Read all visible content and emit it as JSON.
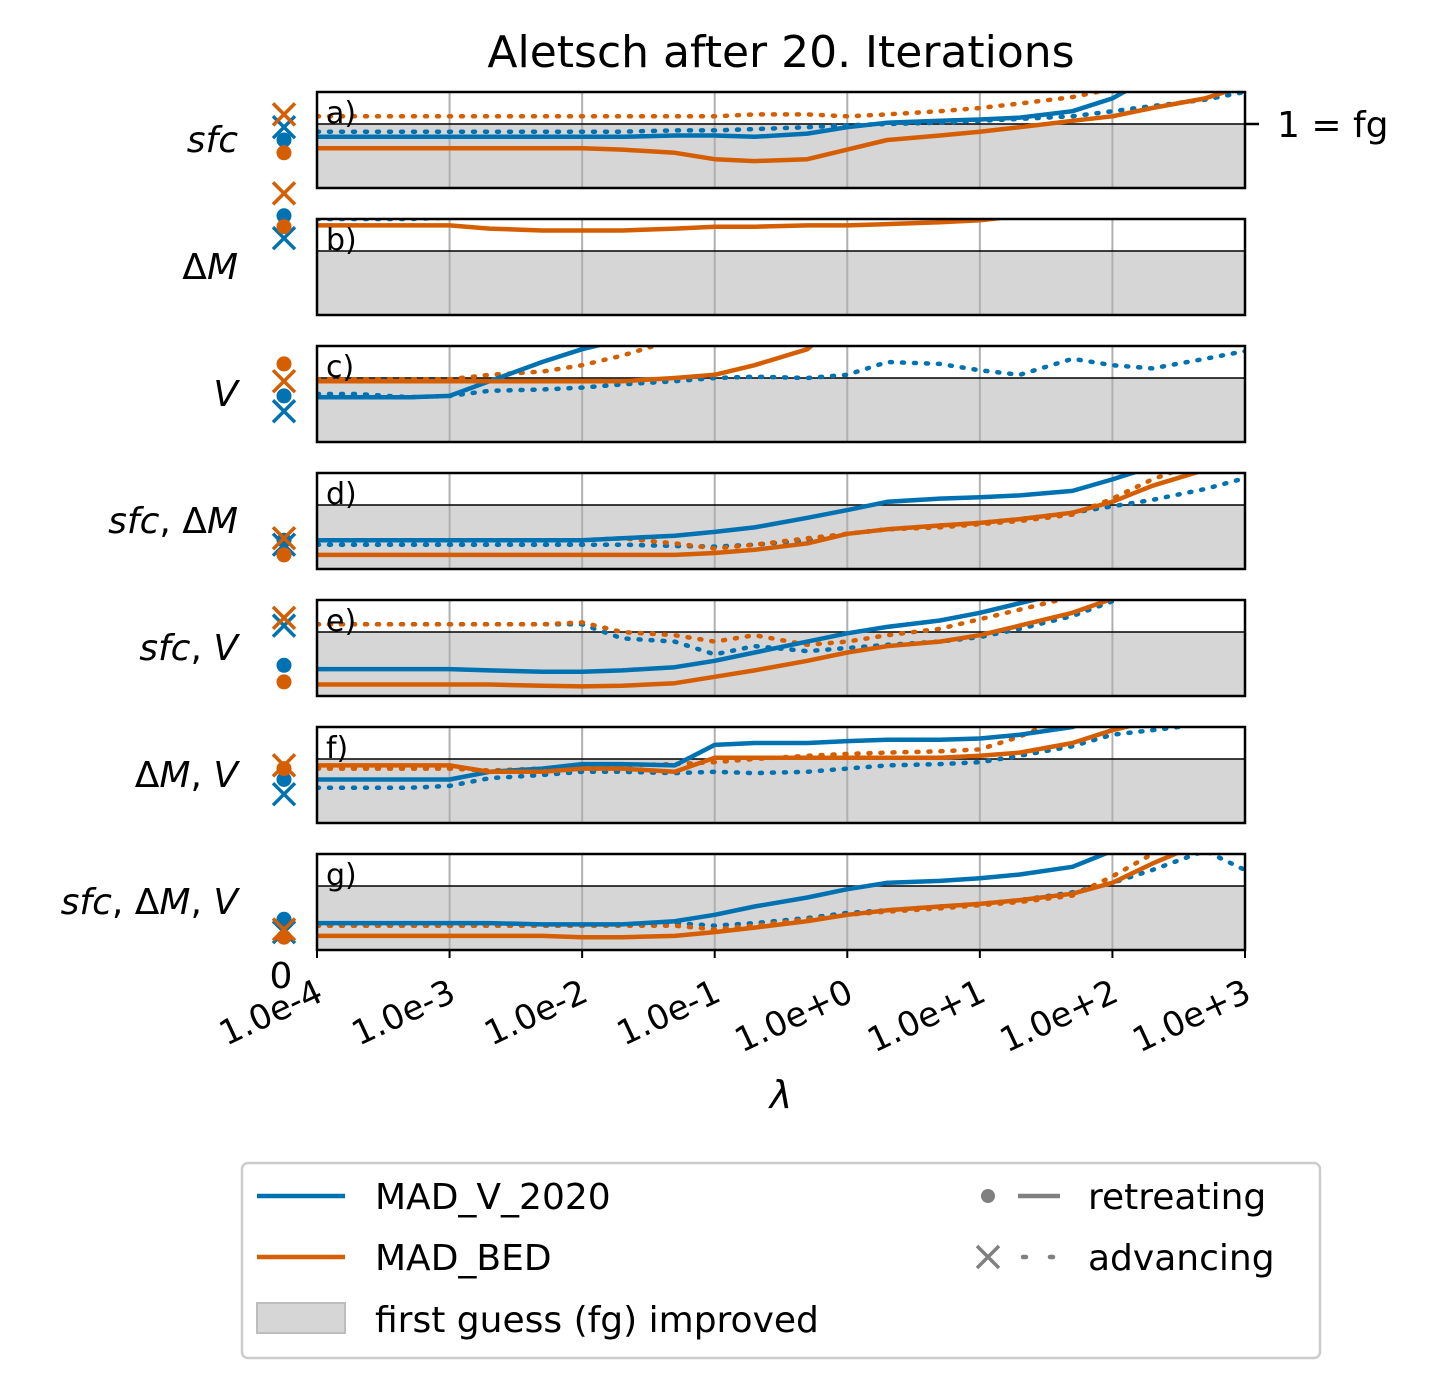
{
  "chart_data": {
    "type": "line",
    "title": "Aletsch after 20. Iterations",
    "xlabel": "λ",
    "x_zero_label": "0",
    "x_ticks": [
      "1.0e-4",
      "1.0e-3",
      "1.0e-2",
      "1.0e-1",
      "1.0e+0",
      "1.0e+1",
      "1.0e+2",
      "1.0e+3"
    ],
    "x_scale": "log",
    "x": [
      0.0001,
      0.0002,
      0.0005,
      0.001,
      0.002,
      0.005,
      0.01,
      0.02,
      0.05,
      0.1,
      0.2,
      0.5,
      1,
      2,
      5,
      10,
      20,
      50,
      100,
      200,
      500,
      1000
    ],
    "reference_line_label": "1 = fg",
    "reference_value": 1,
    "ylim": [
      0,
      1.5
    ],
    "improved_region": [
      0,
      1
    ],
    "colors": {
      "MAD_V_2020": "#0072b2",
      "MAD_BED": "#d55e00",
      "shade": "#d6d6d6",
      "marker_legend": "#808080"
    },
    "panels": [
      {
        "label": "a)",
        "row_label": "sfc",
        "zero_markers": {
          "V2020_retreating": 0.75,
          "V2020_advancing": 0.95,
          "BED_retreating": 0.55,
          "BED_advancing": 1.15
        },
        "series": {
          "V2020_retreating": [
            0.8,
            0.8,
            0.8,
            0.8,
            0.8,
            0.8,
            0.8,
            0.8,
            0.82,
            0.82,
            0.8,
            0.85,
            0.95,
            1.02,
            1.05,
            1.07,
            1.1,
            1.2,
            1.4,
            1.75,
            2.1,
            2.4
          ],
          "V2020_advancing": [
            0.88,
            0.88,
            0.88,
            0.88,
            0.88,
            0.88,
            0.88,
            0.88,
            0.9,
            0.9,
            0.92,
            0.95,
            0.98,
            1.0,
            1.02,
            1.05,
            1.08,
            1.12,
            1.2,
            1.28,
            1.38,
            1.5
          ],
          "BED_retreating": [
            0.62,
            0.62,
            0.62,
            0.62,
            0.62,
            0.62,
            0.62,
            0.6,
            0.55,
            0.45,
            0.42,
            0.45,
            0.6,
            0.75,
            0.82,
            0.88,
            0.95,
            1.05,
            1.12,
            1.25,
            1.4,
            1.6
          ],
          "BED_advancing": [
            1.12,
            1.12,
            1.12,
            1.12,
            1.12,
            1.12,
            1.12,
            1.12,
            1.12,
            1.12,
            1.15,
            1.15,
            1.12,
            1.15,
            1.2,
            1.25,
            1.32,
            1.42,
            1.55,
            1.72,
            1.95,
            2.2
          ]
        }
      },
      {
        "label": "b)",
        "row_label": "ΔM",
        "zero_markers": {
          "V2020_retreating": 1.55,
          "V2020_advancing": 1.2,
          "BED_retreating": 1.38,
          "BED_advancing": 1.9
        },
        "series": {
          "V2020_retreating": [
            1.65,
            1.65,
            1.65,
            1.65,
            1.65,
            1.67,
            1.68,
            1.68,
            1.7,
            2.25,
            2.3,
            2.28,
            2.2,
            2.15,
            2.12,
            2.18,
            2.25,
            2.35,
            2.4,
            2.35,
            2.4,
            2.45
          ],
          "V2020_advancing": [
            1.5,
            1.5,
            1.5,
            1.52,
            1.52,
            1.55,
            1.55,
            1.58,
            1.65,
            1.82,
            1.95,
            2.1,
            2.25,
            2.35,
            2.4,
            2.42,
            2.45,
            2.45,
            2.4,
            2.35,
            2.38,
            2.45
          ],
          "BED_retreating": [
            1.4,
            1.4,
            1.4,
            1.4,
            1.35,
            1.32,
            1.32,
            1.32,
            1.35,
            1.38,
            1.38,
            1.4,
            1.4,
            1.42,
            1.45,
            1.48,
            1.55,
            1.65,
            1.75,
            1.85,
            1.95,
            2.05
          ],
          "BED_advancing": [
            1.9,
            1.9,
            1.9,
            1.92,
            2.05,
            2.1,
            2.15,
            2.2,
            2.25,
            2.3,
            2.35,
            2.4,
            2.45,
            2.5,
            2.55,
            2.6,
            2.65,
            2.7,
            2.75,
            2.8,
            2.85,
            2.9
          ]
        }
      },
      {
        "label": "c)",
        "row_label": "V",
        "zero_markers": {
          "V2020_retreating": 0.72,
          "V2020_advancing": 0.48,
          "BED_retreating": 1.22,
          "BED_advancing": 0.95
        },
        "series": {
          "V2020_retreating": [
            0.7,
            0.7,
            0.7,
            0.72,
            0.95,
            1.25,
            1.45,
            1.6,
            1.7,
            1.85,
            2.1,
            2.5,
            3.0,
            3.5,
            4.0,
            4.5,
            5.0,
            5.5,
            6.0,
            6.5,
            7.0,
            7.5
          ],
          "V2020_advancing": [
            0.75,
            0.75,
            0.7,
            0.72,
            0.8,
            0.82,
            0.85,
            0.9,
            0.95,
            1.0,
            1.02,
            1.0,
            1.05,
            1.25,
            1.22,
            1.12,
            1.05,
            1.3,
            1.2,
            1.15,
            1.3,
            1.42
          ],
          "BED_retreating": [
            0.95,
            0.95,
            0.95,
            0.95,
            0.95,
            0.95,
            0.95,
            0.95,
            1.0,
            1.05,
            1.2,
            1.45,
            2.0,
            2.5,
            3.0,
            3.5,
            4.0,
            4.5,
            5.0,
            5.5,
            6.0,
            6.5
          ],
          "BED_advancing": [
            0.98,
            0.98,
            0.98,
            0.98,
            1.05,
            1.1,
            1.2,
            1.35,
            1.6,
            2.0,
            2.5,
            3.0,
            3.5,
            4.0,
            4.5,
            5.0,
            5.5,
            6.0,
            6.5,
            7.0,
            7.5,
            8.0
          ]
        }
      },
      {
        "label": "d)",
        "row_label": "sfc, ΔM",
        "zero_markers": {
          "V2020_retreating": 0.45,
          "V2020_advancing": 0.38,
          "BED_retreating": 0.22,
          "BED_advancing": 0.48
        },
        "series": {
          "V2020_retreating": [
            0.45,
            0.45,
            0.45,
            0.45,
            0.45,
            0.45,
            0.45,
            0.48,
            0.52,
            0.58,
            0.65,
            0.8,
            0.92,
            1.05,
            1.1,
            1.12,
            1.15,
            1.22,
            1.4,
            1.6,
            1.85,
            2.1
          ],
          "V2020_advancing": [
            0.38,
            0.38,
            0.38,
            0.38,
            0.38,
            0.38,
            0.38,
            0.38,
            0.36,
            0.35,
            0.38,
            0.45,
            0.55,
            0.62,
            0.68,
            0.72,
            0.78,
            0.88,
            0.98,
            1.08,
            1.25,
            1.42
          ],
          "BED_retreating": [
            0.22,
            0.22,
            0.22,
            0.22,
            0.22,
            0.22,
            0.22,
            0.22,
            0.22,
            0.25,
            0.3,
            0.4,
            0.55,
            0.62,
            0.68,
            0.72,
            0.78,
            0.88,
            1.05,
            1.3,
            1.55,
            1.8
          ],
          "BED_advancing": [
            0.45,
            0.45,
            0.45,
            0.45,
            0.45,
            0.45,
            0.45,
            0.48,
            0.4,
            0.32,
            0.38,
            0.48,
            0.55,
            0.62,
            0.65,
            0.7,
            0.75,
            0.85,
            1.1,
            1.4,
            1.7,
            2.0
          ]
        }
      },
      {
        "label": "e)",
        "row_label": "sfc, V",
        "zero_markers": {
          "V2020_retreating": 0.48,
          "V2020_advancing": 1.1,
          "BED_retreating": 0.22,
          "BED_advancing": 1.22
        },
        "series": {
          "V2020_retreating": [
            0.42,
            0.42,
            0.42,
            0.42,
            0.4,
            0.38,
            0.38,
            0.4,
            0.45,
            0.55,
            0.68,
            0.85,
            0.98,
            1.08,
            1.18,
            1.3,
            1.45,
            1.65,
            1.85,
            2.05,
            2.25,
            2.45
          ],
          "V2020_advancing": [
            1.12,
            1.12,
            1.12,
            1.12,
            1.12,
            1.12,
            1.12,
            0.9,
            0.85,
            0.65,
            0.78,
            0.7,
            0.75,
            0.8,
            0.85,
            0.92,
            1.05,
            1.25,
            1.48,
            1.7,
            1.92,
            2.1
          ],
          "BED_retreating": [
            0.18,
            0.18,
            0.18,
            0.18,
            0.18,
            0.16,
            0.15,
            0.16,
            0.2,
            0.3,
            0.4,
            0.55,
            0.68,
            0.78,
            0.85,
            0.95,
            1.1,
            1.3,
            1.52,
            1.75,
            1.98,
            2.2
          ],
          "BED_advancing": [
            1.12,
            1.12,
            1.12,
            1.12,
            1.12,
            1.12,
            1.15,
            1.0,
            0.95,
            0.85,
            0.95,
            0.8,
            0.85,
            0.95,
            1.05,
            1.2,
            1.35,
            1.55,
            1.75,
            1.95,
            2.15,
            2.35
          ]
        }
      },
      {
        "label": "f)",
        "row_label": "ΔM, V",
        "zero_markers": {
          "V2020_retreating": 0.68,
          "V2020_advancing": 0.45,
          "BED_retreating": 0.85,
          "BED_advancing": 0.9
        },
        "series": {
          "V2020_retreating": [
            0.68,
            0.68,
            0.68,
            0.68,
            0.8,
            0.85,
            0.92,
            0.92,
            0.9,
            1.22,
            1.25,
            1.25,
            1.28,
            1.3,
            1.3,
            1.32,
            1.38,
            1.5,
            1.75,
            1.95,
            2.15,
            2.35
          ],
          "V2020_advancing": [
            0.55,
            0.55,
            0.55,
            0.58,
            0.7,
            0.75,
            0.8,
            0.8,
            0.78,
            0.8,
            0.78,
            0.8,
            0.85,
            0.9,
            0.92,
            0.95,
            1.05,
            1.2,
            1.38,
            1.45,
            1.55,
            1.65
          ],
          "BED_retreating": [
            0.9,
            0.9,
            0.9,
            0.9,
            0.8,
            0.8,
            0.85,
            0.85,
            0.8,
            1.02,
            1.02,
            1.02,
            1.02,
            1.02,
            1.02,
            1.05,
            1.1,
            1.25,
            1.45,
            1.6,
            1.78,
            1.95
          ],
          "BED_advancing": [
            0.85,
            0.85,
            0.85,
            0.85,
            0.82,
            0.85,
            0.88,
            0.9,
            0.92,
            0.95,
            1.0,
            1.05,
            1.08,
            1.1,
            1.12,
            1.15,
            1.35,
            1.7,
            2.05,
            2.4,
            2.75,
            3.1
          ]
        }
      },
      {
        "label": "g)",
        "row_label": "sfc, ΔM, V",
        "zero_markers": {
          "V2020_retreating": 0.48,
          "V2020_advancing": 0.28,
          "BED_retreating": 0.2,
          "BED_advancing": 0.32
        },
        "series": {
          "V2020_retreating": [
            0.42,
            0.42,
            0.42,
            0.42,
            0.42,
            0.4,
            0.4,
            0.4,
            0.45,
            0.55,
            0.68,
            0.82,
            0.95,
            1.05,
            1.08,
            1.12,
            1.18,
            1.3,
            1.55,
            1.85,
            2.15,
            2.45
          ],
          "V2020_advancing": [
            0.38,
            0.38,
            0.38,
            0.38,
            0.38,
            0.38,
            0.38,
            0.4,
            0.42,
            0.38,
            0.42,
            0.5,
            0.58,
            0.62,
            0.68,
            0.72,
            0.78,
            0.9,
            1.05,
            1.25,
            1.55,
            1.25
          ],
          "BED_retreating": [
            0.22,
            0.22,
            0.22,
            0.22,
            0.22,
            0.22,
            0.2,
            0.2,
            0.22,
            0.28,
            0.35,
            0.45,
            0.55,
            0.62,
            0.68,
            0.72,
            0.78,
            0.88,
            1.05,
            1.35,
            1.7,
            2.0
          ],
          "BED_advancing": [
            0.38,
            0.38,
            0.38,
            0.38,
            0.38,
            0.38,
            0.38,
            0.38,
            0.38,
            0.32,
            0.38,
            0.48,
            0.55,
            0.6,
            0.65,
            0.7,
            0.75,
            0.85,
            1.15,
            1.5,
            1.85,
            2.2
          ]
        }
      }
    ],
    "legend": {
      "entries": [
        {
          "key": "MAD_V_2020",
          "label": "MAD_V_2020"
        },
        {
          "key": "MAD_BED",
          "label": "MAD_BED"
        },
        {
          "key": "shade",
          "label": "first guess (fg) improved"
        },
        {
          "key": "retreating",
          "label": "retreating"
        },
        {
          "key": "advancing",
          "label": "advancing"
        }
      ]
    }
  }
}
